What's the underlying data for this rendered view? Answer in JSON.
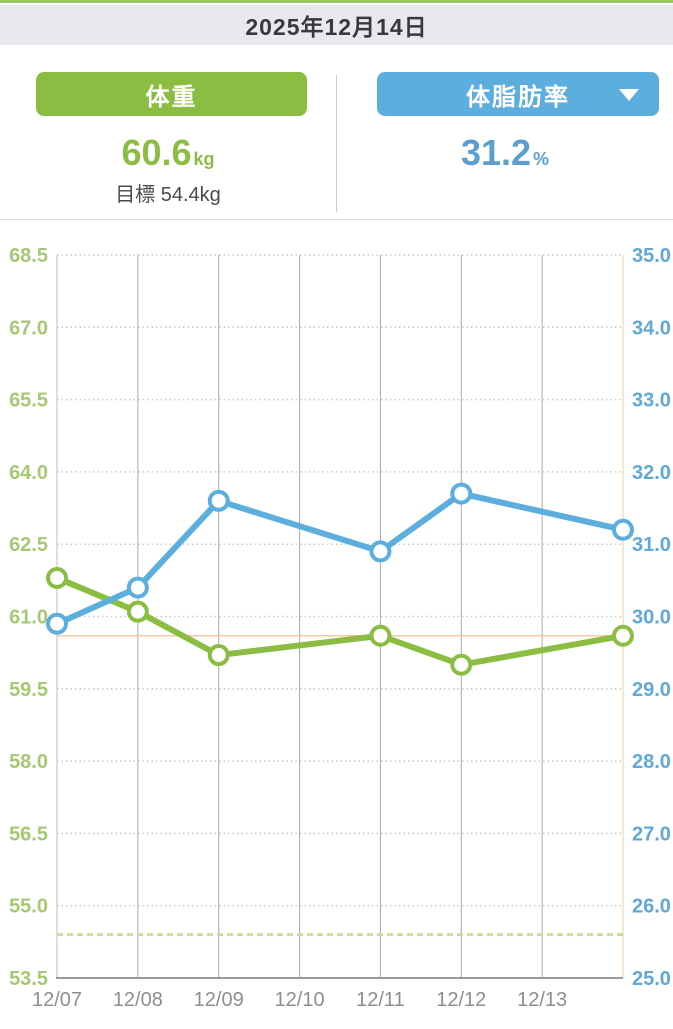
{
  "header": {
    "date": "2025年12月14日"
  },
  "metrics": {
    "weight": {
      "tab_label": "体重",
      "value": "60.6",
      "unit": "kg",
      "goal": "目標 54.4kg",
      "color": "#8cbd43"
    },
    "body_fat": {
      "tab_label": "体脂肪率",
      "value": "31.2",
      "unit": "%",
      "color": "#5baedd",
      "dropdown_icon": "triangle-down-icon"
    }
  },
  "chart_data": {
    "type": "line",
    "x_tick_labels": [
      "12/07",
      "12/08",
      "12/09",
      "12/10",
      "12/11",
      "12/12",
      "12/13"
    ],
    "x_slot_count": 8,
    "left_axis": {
      "min": 53.5,
      "max": 68.5,
      "step": 1.5,
      "ticks": [
        "68.5",
        "67.0",
        "65.5",
        "64.0",
        "62.5",
        "61.0",
        "59.5",
        "58.0",
        "56.5",
        "55.0",
        "53.5"
      ],
      "color": "#a6c873"
    },
    "right_axis": {
      "min": 25.0,
      "max": 35.0,
      "step": 1.0,
      "ticks": [
        "35.0",
        "34.0",
        "33.0",
        "32.0",
        "31.0",
        "30.0",
        "29.0",
        "28.0",
        "27.0",
        "26.0",
        "25.0"
      ],
      "color": "#5fa8d8"
    },
    "series": [
      {
        "name": "体重",
        "axis": "left",
        "color": "#8cbd43",
        "x_index": [
          0,
          1,
          2,
          4,
          5,
          7
        ],
        "values": [
          61.8,
          61.1,
          60.2,
          60.6,
          60.0,
          60.6
        ]
      },
      {
        "name": "体脂肪率",
        "axis": "right",
        "color": "#5baedd",
        "x_index": [
          0,
          1,
          2,
          4,
          5,
          7
        ],
        "values": [
          29.9,
          30.4,
          31.6,
          30.9,
          31.7,
          31.2
        ]
      }
    ],
    "reference_lines": [
      {
        "value": 60.6,
        "axis": "left",
        "style": "solid",
        "color": "#f5c9a2"
      },
      {
        "value": 54.4,
        "axis": "left",
        "style": "dashed",
        "color": "#cedd96"
      }
    ],
    "grid": {
      "dot_color": "#c9c9c9",
      "v_color": "#a9a9a9",
      "left_axis_line": "#bdbdbd",
      "right_axis_line": "#f3ddc4",
      "bottom_axis": "#999999",
      "x_label_color": "#8e8e8e",
      "legend": "none"
    }
  }
}
